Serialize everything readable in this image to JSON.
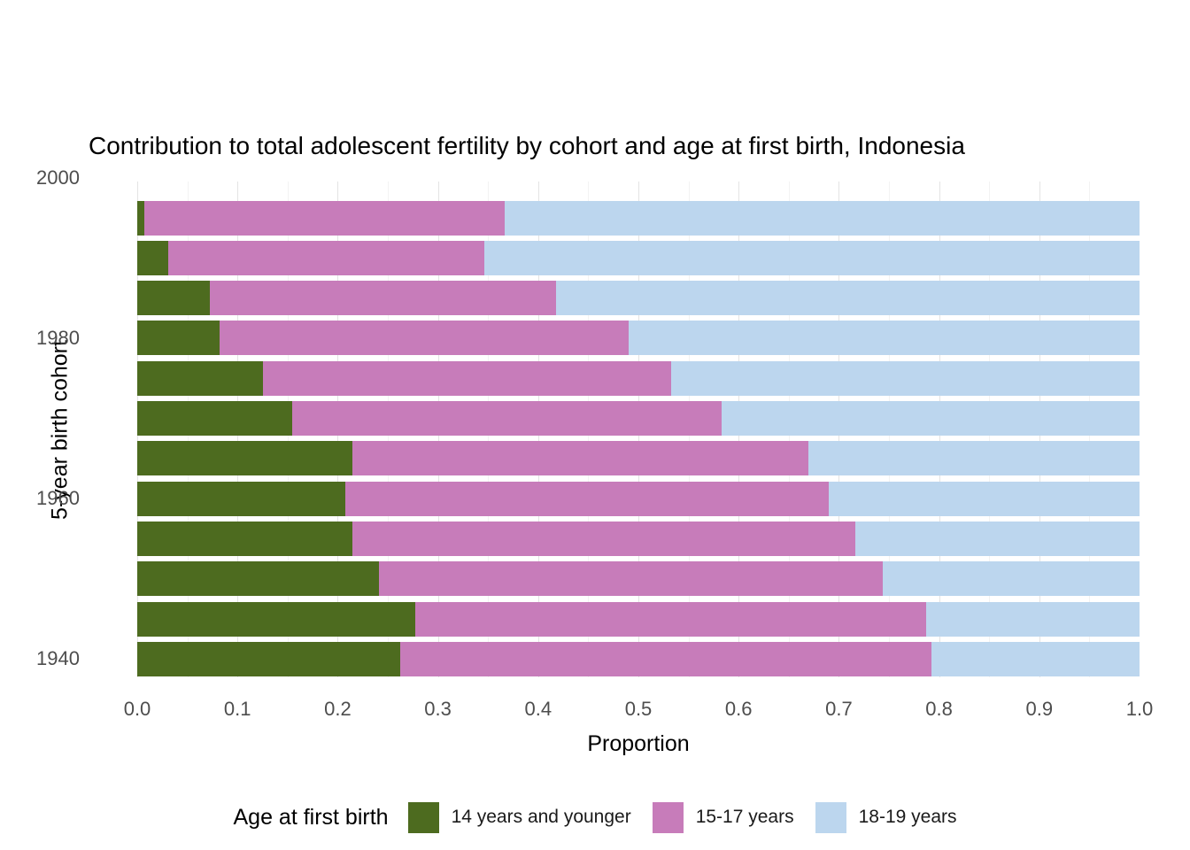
{
  "chart_data": {
    "type": "bar",
    "orientation": "horizontal",
    "stacked": true,
    "title": "Contribution to total adolescent fertility by cohort and age at first birth,  Indonesia",
    "xlabel": "Proportion",
    "ylabel": "5-year birth cohort",
    "xlim": [
      0,
      1
    ],
    "x_tick_labels": [
      "0.0",
      "0.1",
      "0.2",
      "0.3",
      "0.4",
      "0.5",
      "0.6",
      "0.7",
      "0.8",
      "0.9",
      "1.0"
    ],
    "y_tick_labels": [
      "1940",
      "1960",
      "1980",
      "2000"
    ],
    "y_minor_gridlines": [
      "1950",
      "1970",
      "1990"
    ],
    "grid": true,
    "legend_position": "bottom",
    "legend": {
      "title": "Age at first birth"
    },
    "categories": [
      "1995",
      "1990",
      "1985",
      "1980",
      "1975",
      "1970",
      "1965",
      "1960",
      "1955",
      "1950",
      "1945",
      "1940"
    ],
    "series": [
      {
        "name": "14 years and younger",
        "color": "#4d6b1f",
        "values": [
          0.007,
          0.031,
          0.072,
          0.082,
          0.125,
          0.155,
          0.215,
          0.208,
          0.215,
          0.241,
          0.277,
          0.262
        ]
      },
      {
        "name": "15-17 years",
        "color": "#c77cba",
        "values": [
          0.36,
          0.315,
          0.346,
          0.408,
          0.408,
          0.428,
          0.455,
          0.482,
          0.501,
          0.503,
          0.51,
          0.53
        ]
      },
      {
        "name": "18-19 years",
        "color": "#bcd6ee",
        "values": [
          0.633,
          0.654,
          0.582,
          0.51,
          0.467,
          0.417,
          0.33,
          0.31,
          0.284,
          0.256,
          0.213,
          0.208
        ]
      }
    ]
  }
}
